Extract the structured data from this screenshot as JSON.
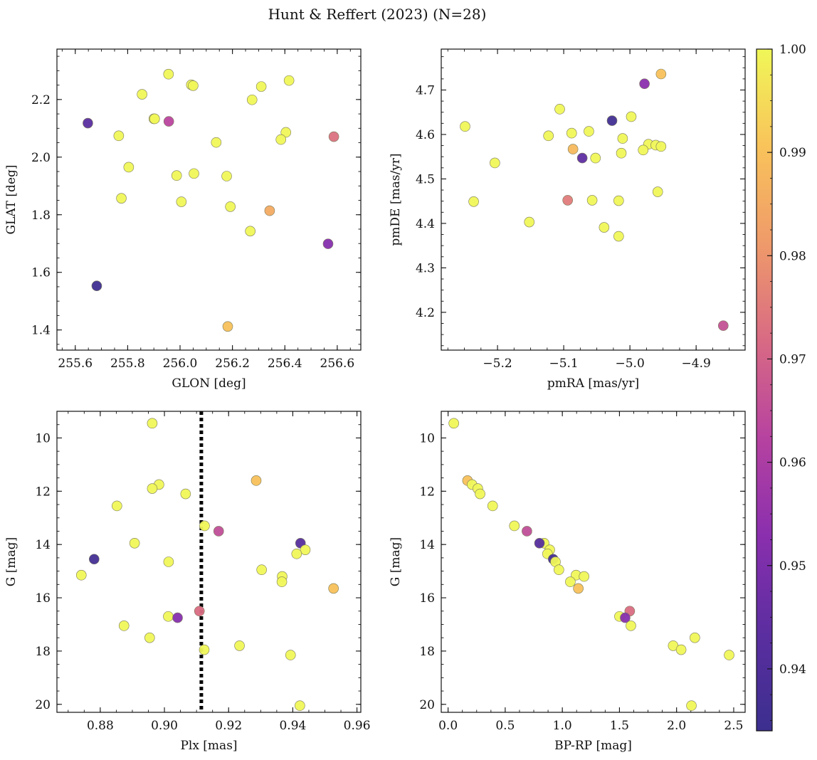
{
  "chart_data": {
    "suptitle": "Hunt & Reffert (2023) (N=28)",
    "colorbar": {
      "range": [
        0.934,
        1.0
      ],
      "ticks": [
        0.94,
        0.95,
        0.96,
        0.97,
        0.98,
        0.99,
        1.0
      ],
      "tick_labels": [
        "0.94",
        "0.95",
        "0.96",
        "0.97",
        "0.98",
        "0.99",
        "1.00"
      ],
      "colormap": "plasma",
      "stops": [
        "#3b2f8e",
        "#5b2ea0",
        "#8a2fae",
        "#b642a0",
        "#d86a84",
        "#ef9a6a",
        "#f9c35a",
        "#f0f758"
      ]
    },
    "panels": [
      {
        "type": "scatter",
        "xlabel": "GLON [deg]",
        "ylabel": "GLAT [deg]",
        "xlim": [
          255.53,
          256.69
        ],
        "ylim": [
          1.33,
          2.375
        ],
        "xticks": [
          255.6,
          255.8,
          256.0,
          256.2,
          256.4,
          256.6
        ],
        "xtick_labels": [
          "255.6",
          "255.8",
          "256.0",
          "256.2",
          "256.4",
          "256.6"
        ],
        "yticks": [
          1.4,
          1.6,
          1.8,
          2.0,
          2.2
        ],
        "ytick_labels": [
          "1.4",
          "1.6",
          "1.8",
          "2.0",
          "2.2"
        ],
        "points": [
          {
            "x": 255.648,
            "y": 2.118,
            "c": 0.943
          },
          {
            "x": 255.766,
            "y": 2.074,
            "c": 1.0
          },
          {
            "x": 255.855,
            "y": 2.218,
            "c": 1.0
          },
          {
            "x": 255.9,
            "y": 2.133,
            "c": 1.0
          },
          {
            "x": 255.956,
            "y": 2.288,
            "c": 1.0
          },
          {
            "x": 256.043,
            "y": 2.251,
            "c": 1.0
          },
          {
            "x": 256.05,
            "y": 2.248,
            "c": 1.0
          },
          {
            "x": 256.31,
            "y": 2.245,
            "c": 1.0
          },
          {
            "x": 256.416,
            "y": 2.266,
            "c": 1.0
          },
          {
            "x": 256.275,
            "y": 2.199,
            "c": 1.0
          },
          {
            "x": 255.957,
            "y": 2.124,
            "c": 0.963
          },
          {
            "x": 256.587,
            "y": 2.071,
            "c": 0.973
          },
          {
            "x": 256.138,
            "y": 2.051,
            "c": 1.0
          },
          {
            "x": 256.404,
            "y": 2.086,
            "c": 1.0
          },
          {
            "x": 256.385,
            "y": 2.061,
            "c": 1.0
          },
          {
            "x": 255.804,
            "y": 1.965,
            "c": 1.0
          },
          {
            "x": 255.987,
            "y": 1.936,
            "c": 1.0
          },
          {
            "x": 256.053,
            "y": 1.943,
            "c": 1.0
          },
          {
            "x": 256.178,
            "y": 1.934,
            "c": 1.0
          },
          {
            "x": 255.776,
            "y": 1.857,
            "c": 1.0
          },
          {
            "x": 256.005,
            "y": 1.845,
            "c": 1.0
          },
          {
            "x": 256.192,
            "y": 1.828,
            "c": 1.0
          },
          {
            "x": 256.342,
            "y": 1.814,
            "c": 0.985
          },
          {
            "x": 256.268,
            "y": 1.743,
            "c": 1.0
          },
          {
            "x": 256.565,
            "y": 1.699,
            "c": 0.952
          },
          {
            "x": 255.682,
            "y": 1.553,
            "c": 0.935
          },
          {
            "x": 256.182,
            "y": 1.412,
            "c": 0.99
          },
          {
            "x": 255.903,
            "y": 2.133,
            "c": 1.0
          }
        ]
      },
      {
        "type": "scatter",
        "xlabel": "pmRA [mas/yr]",
        "ylabel": "pmDE [mas/yr]",
        "xlim": [
          -5.285,
          -4.826
        ],
        "ylim": [
          4.115,
          4.792
        ],
        "xticks": [
          -5.2,
          -5.1,
          -5.0,
          -4.9
        ],
        "xtick_labels": [
          "−5.2",
          "−5.1",
          "−5.0",
          "−4.9"
        ],
        "yticks": [
          4.2,
          4.3,
          4.4,
          4.5,
          4.6,
          4.7
        ],
        "ytick_labels": [
          "4.2",
          "4.3",
          "4.4",
          "4.5",
          "4.6",
          "4.7"
        ],
        "points": [
          {
            "x": -4.953,
            "y": 4.736,
            "c": 0.99
          },
          {
            "x": -4.978,
            "y": 4.714,
            "c": 0.953
          },
          {
            "x": -5.106,
            "y": 4.657,
            "c": 1.0
          },
          {
            "x": -4.998,
            "y": 4.64,
            "c": 1.0
          },
          {
            "x": -5.027,
            "y": 4.631,
            "c": 0.936
          },
          {
            "x": -5.249,
            "y": 4.618,
            "c": 1.0
          },
          {
            "x": -5.062,
            "y": 4.607,
            "c": 1.0
          },
          {
            "x": -5.088,
            "y": 4.603,
            "c": 1.0
          },
          {
            "x": -5.123,
            "y": 4.597,
            "c": 1.0
          },
          {
            "x": -5.011,
            "y": 4.591,
            "c": 1.0
          },
          {
            "x": -4.972,
            "y": 4.578,
            "c": 1.0
          },
          {
            "x": -4.961,
            "y": 4.576,
            "c": 1.0
          },
          {
            "x": -4.953,
            "y": 4.573,
            "c": 1.0
          },
          {
            "x": -4.98,
            "y": 4.565,
            "c": 1.0
          },
          {
            "x": -5.086,
            "y": 4.567,
            "c": 0.988
          },
          {
            "x": -5.013,
            "y": 4.558,
            "c": 1.0
          },
          {
            "x": -5.072,
            "y": 4.547,
            "c": 0.944
          },
          {
            "x": -5.052,
            "y": 4.547,
            "c": 1.0
          },
          {
            "x": -5.204,
            "y": 4.536,
            "c": 1.0
          },
          {
            "x": -4.958,
            "y": 4.471,
            "c": 1.0
          },
          {
            "x": -5.094,
            "y": 4.452,
            "c": 0.975
          },
          {
            "x": -5.057,
            "y": 4.452,
            "c": 1.0
          },
          {
            "x": -5.017,
            "y": 4.451,
            "c": 1.0
          },
          {
            "x": -5.236,
            "y": 4.449,
            "c": 1.0
          },
          {
            "x": -5.152,
            "y": 4.403,
            "c": 1.0
          },
          {
            "x": -5.039,
            "y": 4.391,
            "c": 1.0
          },
          {
            "x": -5.017,
            "y": 4.371,
            "c": 1.0
          },
          {
            "x": -4.859,
            "y": 4.17,
            "c": 0.966
          }
        ]
      },
      {
        "type": "scatter",
        "xlabel": "Plx [mas]",
        "ylabel": "G [mag]",
        "xlim": [
          0.8665,
          0.9612
        ],
        "ylim": [
          20.3,
          9.0
        ],
        "invert_y": true,
        "vline": 0.9115,
        "xticks": [
          0.88,
          0.9,
          0.92,
          0.94,
          0.96
        ],
        "xtick_labels": [
          "0.88",
          "0.90",
          "0.92",
          "0.94",
          "0.96"
        ],
        "yticks": [
          10,
          12,
          14,
          16,
          18,
          20
        ],
        "ytick_labels": [
          "10",
          "12",
          "14",
          "16",
          "18",
          "20"
        ],
        "points": [
          {
            "x": 0.8962,
            "y": 9.45,
            "c": 1.0
          },
          {
            "x": 0.9286,
            "y": 11.6,
            "c": 0.99
          },
          {
            "x": 0.8983,
            "y": 11.75,
            "c": 1.0
          },
          {
            "x": 0.8962,
            "y": 11.9,
            "c": 1.0
          },
          {
            "x": 0.9066,
            "y": 12.1,
            "c": 1.0
          },
          {
            "x": 0.8852,
            "y": 12.55,
            "c": 1.0
          },
          {
            "x": 0.9125,
            "y": 13.3,
            "c": 1.0
          },
          {
            "x": 0.9169,
            "y": 13.5,
            "c": 0.965
          },
          {
            "x": 0.8907,
            "y": 13.95,
            "c": 1.0
          },
          {
            "x": 0.9424,
            "y": 13.95,
            "c": 0.942
          },
          {
            "x": 0.9439,
            "y": 14.2,
            "c": 1.0
          },
          {
            "x": 0.9412,
            "y": 14.35,
            "c": 1.0
          },
          {
            "x": 0.8781,
            "y": 14.55,
            "c": 0.937
          },
          {
            "x": 0.9013,
            "y": 14.65,
            "c": 1.0
          },
          {
            "x": 0.9303,
            "y": 14.95,
            "c": 1.0
          },
          {
            "x": 0.8741,
            "y": 15.15,
            "c": 1.0
          },
          {
            "x": 0.9367,
            "y": 15.2,
            "c": 1.0
          },
          {
            "x": 0.9366,
            "y": 15.4,
            "c": 1.0
          },
          {
            "x": 0.9527,
            "y": 15.65,
            "c": 0.99
          },
          {
            "x": 0.9109,
            "y": 16.5,
            "c": 0.972
          },
          {
            "x": 0.9012,
            "y": 16.7,
            "c": 1.0
          },
          {
            "x": 0.9041,
            "y": 16.75,
            "c": 0.952
          },
          {
            "x": 0.8874,
            "y": 17.05,
            "c": 1.0
          },
          {
            "x": 0.8954,
            "y": 17.5,
            "c": 1.0
          },
          {
            "x": 0.9234,
            "y": 17.8,
            "c": 1.0
          },
          {
            "x": 0.9124,
            "y": 17.95,
            "c": 1.0
          },
          {
            "x": 0.9393,
            "y": 18.15,
            "c": 1.0
          },
          {
            "x": 0.9422,
            "y": 20.05,
            "c": 1.0
          }
        ]
      },
      {
        "type": "scatter",
        "xlabel": "BP-RP [mag]",
        "ylabel": "G [mag]",
        "xlim": [
          -0.06,
          2.6
        ],
        "ylim": [
          20.3,
          9.0
        ],
        "invert_y": true,
        "xticks": [
          0.0,
          0.5,
          1.0,
          1.5,
          2.0,
          2.5
        ],
        "xtick_labels": [
          "0.0",
          "0.5",
          "1.0",
          "1.5",
          "2.0",
          "2.5"
        ],
        "yticks": [
          10,
          12,
          14,
          16,
          18,
          20
        ],
        "ytick_labels": [
          "10",
          "12",
          "14",
          "16",
          "18",
          "20"
        ],
        "points": [
          {
            "x": 0.05,
            "y": 9.45,
            "c": 1.0
          },
          {
            "x": 0.17,
            "y": 11.6,
            "c": 0.99
          },
          {
            "x": 0.21,
            "y": 11.75,
            "c": 1.0
          },
          {
            "x": 0.26,
            "y": 11.9,
            "c": 1.0
          },
          {
            "x": 0.28,
            "y": 12.1,
            "c": 1.0
          },
          {
            "x": 0.39,
            "y": 12.55,
            "c": 1.0
          },
          {
            "x": 0.58,
            "y": 13.3,
            "c": 1.0
          },
          {
            "x": 0.69,
            "y": 13.5,
            "c": 0.965
          },
          {
            "x": 0.84,
            "y": 13.95,
            "c": 1.0
          },
          {
            "x": 0.8,
            "y": 13.95,
            "c": 0.942
          },
          {
            "x": 0.89,
            "y": 14.2,
            "c": 1.0
          },
          {
            "x": 0.87,
            "y": 14.35,
            "c": 1.0
          },
          {
            "x": 0.92,
            "y": 14.55,
            "c": 0.937
          },
          {
            "x": 0.94,
            "y": 14.65,
            "c": 1.0
          },
          {
            "x": 0.97,
            "y": 14.95,
            "c": 1.0
          },
          {
            "x": 1.12,
            "y": 15.15,
            "c": 1.0
          },
          {
            "x": 1.19,
            "y": 15.2,
            "c": 1.0
          },
          {
            "x": 1.07,
            "y": 15.4,
            "c": 1.0
          },
          {
            "x": 1.14,
            "y": 15.65,
            "c": 0.99
          },
          {
            "x": 1.59,
            "y": 16.5,
            "c": 0.972
          },
          {
            "x": 1.5,
            "y": 16.7,
            "c": 1.0
          },
          {
            "x": 1.55,
            "y": 16.75,
            "c": 0.952
          },
          {
            "x": 1.6,
            "y": 17.05,
            "c": 1.0
          },
          {
            "x": 2.16,
            "y": 17.5,
            "c": 1.0
          },
          {
            "x": 1.97,
            "y": 17.8,
            "c": 1.0
          },
          {
            "x": 2.04,
            "y": 17.95,
            "c": 1.0
          },
          {
            "x": 2.46,
            "y": 18.15,
            "c": 1.0
          },
          {
            "x": 2.13,
            "y": 20.05,
            "c": 1.0
          }
        ]
      }
    ]
  }
}
